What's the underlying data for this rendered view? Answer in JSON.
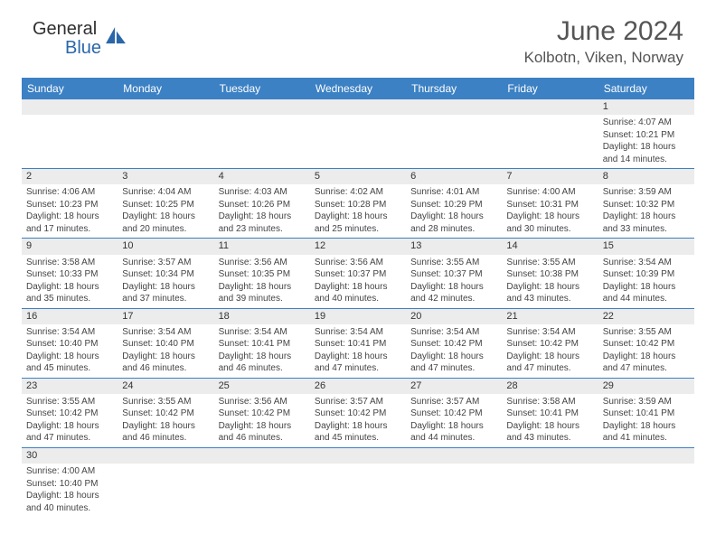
{
  "brand": {
    "name_part1": "General",
    "name_part2": "Blue"
  },
  "title": {
    "month": "June 2024",
    "location": "Kolbotn, Viken, Norway"
  },
  "colors": {
    "header_blue": "#3c81c4",
    "light_grey": "#ececec",
    "brand_blue": "#2a67a9",
    "text_primary": "#444444"
  },
  "weekdays": [
    "Sunday",
    "Monday",
    "Tuesday",
    "Wednesday",
    "Thursday",
    "Friday",
    "Saturday"
  ],
  "weeks": [
    [
      {
        "blank": true
      },
      {
        "blank": true
      },
      {
        "blank": true
      },
      {
        "blank": true
      },
      {
        "blank": true
      },
      {
        "blank": true
      },
      {
        "n": "1",
        "sr": "Sunrise: 4:07 AM",
        "ss": "Sunset: 10:21 PM",
        "d1": "Daylight: 18 hours",
        "d2": "and 14 minutes."
      }
    ],
    [
      {
        "n": "2",
        "sr": "Sunrise: 4:06 AM",
        "ss": "Sunset: 10:23 PM",
        "d1": "Daylight: 18 hours",
        "d2": "and 17 minutes."
      },
      {
        "n": "3",
        "sr": "Sunrise: 4:04 AM",
        "ss": "Sunset: 10:25 PM",
        "d1": "Daylight: 18 hours",
        "d2": "and 20 minutes."
      },
      {
        "n": "4",
        "sr": "Sunrise: 4:03 AM",
        "ss": "Sunset: 10:26 PM",
        "d1": "Daylight: 18 hours",
        "d2": "and 23 minutes."
      },
      {
        "n": "5",
        "sr": "Sunrise: 4:02 AM",
        "ss": "Sunset: 10:28 PM",
        "d1": "Daylight: 18 hours",
        "d2": "and 25 minutes."
      },
      {
        "n": "6",
        "sr": "Sunrise: 4:01 AM",
        "ss": "Sunset: 10:29 PM",
        "d1": "Daylight: 18 hours",
        "d2": "and 28 minutes."
      },
      {
        "n": "7",
        "sr": "Sunrise: 4:00 AM",
        "ss": "Sunset: 10:31 PM",
        "d1": "Daylight: 18 hours",
        "d2": "and 30 minutes."
      },
      {
        "n": "8",
        "sr": "Sunrise: 3:59 AM",
        "ss": "Sunset: 10:32 PM",
        "d1": "Daylight: 18 hours",
        "d2": "and 33 minutes."
      }
    ],
    [
      {
        "n": "9",
        "sr": "Sunrise: 3:58 AM",
        "ss": "Sunset: 10:33 PM",
        "d1": "Daylight: 18 hours",
        "d2": "and 35 minutes."
      },
      {
        "n": "10",
        "sr": "Sunrise: 3:57 AM",
        "ss": "Sunset: 10:34 PM",
        "d1": "Daylight: 18 hours",
        "d2": "and 37 minutes."
      },
      {
        "n": "11",
        "sr": "Sunrise: 3:56 AM",
        "ss": "Sunset: 10:35 PM",
        "d1": "Daylight: 18 hours",
        "d2": "and 39 minutes."
      },
      {
        "n": "12",
        "sr": "Sunrise: 3:56 AM",
        "ss": "Sunset: 10:37 PM",
        "d1": "Daylight: 18 hours",
        "d2": "and 40 minutes."
      },
      {
        "n": "13",
        "sr": "Sunrise: 3:55 AM",
        "ss": "Sunset: 10:37 PM",
        "d1": "Daylight: 18 hours",
        "d2": "and 42 minutes."
      },
      {
        "n": "14",
        "sr": "Sunrise: 3:55 AM",
        "ss": "Sunset: 10:38 PM",
        "d1": "Daylight: 18 hours",
        "d2": "and 43 minutes."
      },
      {
        "n": "15",
        "sr": "Sunrise: 3:54 AM",
        "ss": "Sunset: 10:39 PM",
        "d1": "Daylight: 18 hours",
        "d2": "and 44 minutes."
      }
    ],
    [
      {
        "n": "16",
        "sr": "Sunrise: 3:54 AM",
        "ss": "Sunset: 10:40 PM",
        "d1": "Daylight: 18 hours",
        "d2": "and 45 minutes."
      },
      {
        "n": "17",
        "sr": "Sunrise: 3:54 AM",
        "ss": "Sunset: 10:40 PM",
        "d1": "Daylight: 18 hours",
        "d2": "and 46 minutes."
      },
      {
        "n": "18",
        "sr": "Sunrise: 3:54 AM",
        "ss": "Sunset: 10:41 PM",
        "d1": "Daylight: 18 hours",
        "d2": "and 46 minutes."
      },
      {
        "n": "19",
        "sr": "Sunrise: 3:54 AM",
        "ss": "Sunset: 10:41 PM",
        "d1": "Daylight: 18 hours",
        "d2": "and 47 minutes."
      },
      {
        "n": "20",
        "sr": "Sunrise: 3:54 AM",
        "ss": "Sunset: 10:42 PM",
        "d1": "Daylight: 18 hours",
        "d2": "and 47 minutes."
      },
      {
        "n": "21",
        "sr": "Sunrise: 3:54 AM",
        "ss": "Sunset: 10:42 PM",
        "d1": "Daylight: 18 hours",
        "d2": "and 47 minutes."
      },
      {
        "n": "22",
        "sr": "Sunrise: 3:55 AM",
        "ss": "Sunset: 10:42 PM",
        "d1": "Daylight: 18 hours",
        "d2": "and 47 minutes."
      }
    ],
    [
      {
        "n": "23",
        "sr": "Sunrise: 3:55 AM",
        "ss": "Sunset: 10:42 PM",
        "d1": "Daylight: 18 hours",
        "d2": "and 47 minutes."
      },
      {
        "n": "24",
        "sr": "Sunrise: 3:55 AM",
        "ss": "Sunset: 10:42 PM",
        "d1": "Daylight: 18 hours",
        "d2": "and 46 minutes."
      },
      {
        "n": "25",
        "sr": "Sunrise: 3:56 AM",
        "ss": "Sunset: 10:42 PM",
        "d1": "Daylight: 18 hours",
        "d2": "and 46 minutes."
      },
      {
        "n": "26",
        "sr": "Sunrise: 3:57 AM",
        "ss": "Sunset: 10:42 PM",
        "d1": "Daylight: 18 hours",
        "d2": "and 45 minutes."
      },
      {
        "n": "27",
        "sr": "Sunrise: 3:57 AM",
        "ss": "Sunset: 10:42 PM",
        "d1": "Daylight: 18 hours",
        "d2": "and 44 minutes."
      },
      {
        "n": "28",
        "sr": "Sunrise: 3:58 AM",
        "ss": "Sunset: 10:41 PM",
        "d1": "Daylight: 18 hours",
        "d2": "and 43 minutes."
      },
      {
        "n": "29",
        "sr": "Sunrise: 3:59 AM",
        "ss": "Sunset: 10:41 PM",
        "d1": "Daylight: 18 hours",
        "d2": "and 41 minutes."
      }
    ],
    [
      {
        "n": "30",
        "sr": "Sunrise: 4:00 AM",
        "ss": "Sunset: 10:40 PM",
        "d1": "Daylight: 18 hours",
        "d2": "and 40 minutes."
      },
      {
        "blank": true
      },
      {
        "blank": true
      },
      {
        "blank": true
      },
      {
        "blank": true
      },
      {
        "blank": true
      },
      {
        "blank": true
      }
    ]
  ]
}
